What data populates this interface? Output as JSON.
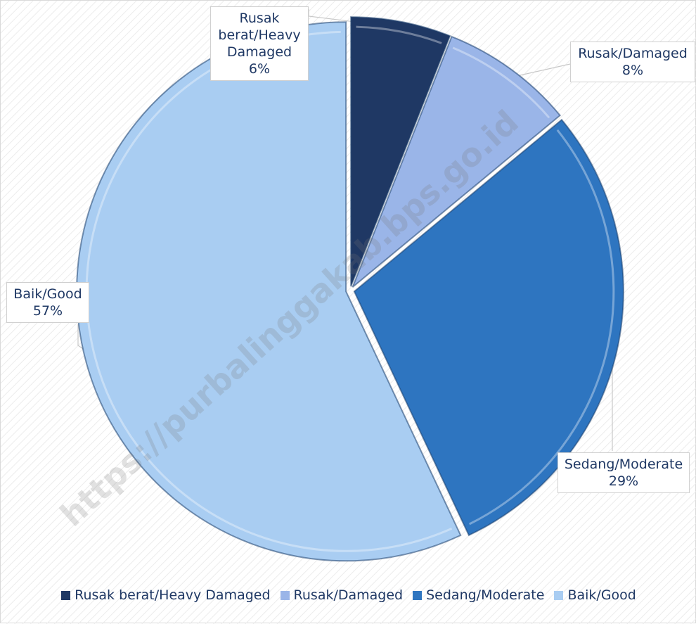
{
  "chart_data": {
    "type": "pie",
    "categories": [
      "Rusak berat/Heavy Damaged",
      "Rusak/Damaged",
      "Sedang/Moderate",
      "Baik/Good"
    ],
    "values": [
      6,
      8,
      29,
      57
    ],
    "value_labels": [
      "6%",
      "8%",
      "29%",
      "57%"
    ],
    "colors": [
      "#1f3864",
      "#9ab5e8",
      "#2e75c0",
      "#a9cdf2"
    ],
    "legend": "bottom",
    "watermark": "https://purbalinggakab.bps.go.id"
  }
}
